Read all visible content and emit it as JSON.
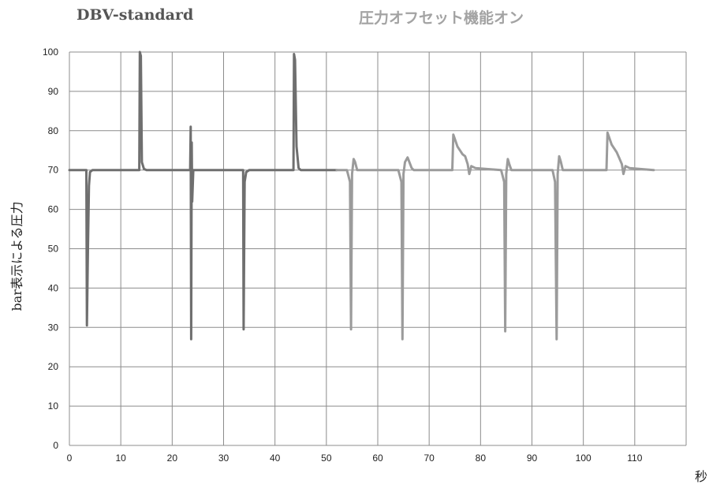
{
  "chart_data": {
    "type": "line",
    "xlabel": "秒",
    "ylabel": "bar表示による圧力",
    "xlim": [
      0,
      120
    ],
    "ylim": [
      0,
      100
    ],
    "x_ticks": [
      0,
      10,
      20,
      30,
      40,
      50,
      60,
      70,
      80,
      90,
      100,
      110
    ],
    "y_ticks": [
      0,
      10,
      20,
      30,
      40,
      50,
      60,
      70,
      80,
      90,
      100
    ],
    "grid": true,
    "legend": "top",
    "series": [
      {
        "name": "DBV-standard",
        "color": "#6f6f6f",
        "x": [
          0,
          3.3,
          3.4,
          3.6,
          3.8,
          4.0,
          4.5,
          13.6,
          13.7,
          13.9,
          14.1,
          14.5,
          15,
          23.5,
          23.6,
          23.7,
          23.8,
          23.9,
          24.1,
          33.8,
          33.9,
          34.1,
          34.4,
          35,
          43.6,
          43.7,
          43.9,
          44.2,
          44.6,
          45,
          52
        ],
        "y": [
          70,
          70,
          30.5,
          50,
          66,
          69.5,
          70,
          70,
          100,
          99,
          72,
          70.3,
          70,
          70,
          81,
          27,
          77,
          62,
          70,
          70,
          29.5,
          67,
          69.5,
          70,
          70,
          99.5,
          98,
          76,
          70.5,
          70,
          70
        ]
      },
      {
        "name": "圧力オフセット機能オン",
        "color": "#9b9b9b",
        "x": [
          52,
          54,
          54.6,
          54.8,
          55.0,
          55.3,
          55.6,
          56,
          57,
          64,
          64.6,
          64.8,
          65.0,
          65.3,
          65.8,
          66.6,
          67,
          74,
          74.5,
          74.7,
          75.5,
          76.5,
          77,
          77.5,
          77.8,
          78.2,
          79,
          84,
          84.6,
          84.8,
          85.0,
          85.3,
          85.6,
          86,
          87,
          94,
          94.5,
          94.8,
          95.0,
          95.3,
          95.6,
          96,
          97,
          104,
          104.5,
          104.7,
          105.5,
          106.5,
          107,
          107.5,
          107.8,
          108.2,
          109,
          113.7
        ],
        "y": [
          70,
          70,
          67,
          29.5,
          69,
          72.8,
          72,
          70,
          70,
          70,
          67,
          27,
          69,
          72,
          73.2,
          70.5,
          70,
          70,
          70,
          79,
          76,
          74,
          73.5,
          71.5,
          69,
          71,
          70.5,
          70,
          67,
          29,
          69,
          72.8,
          71.5,
          70,
          70,
          70,
          67,
          27,
          69,
          73.5,
          72.2,
          70,
          70,
          70,
          70,
          79.5,
          76.5,
          74.5,
          73,
          71.5,
          69,
          71,
          70.5,
          70
        ]
      }
    ]
  }
}
